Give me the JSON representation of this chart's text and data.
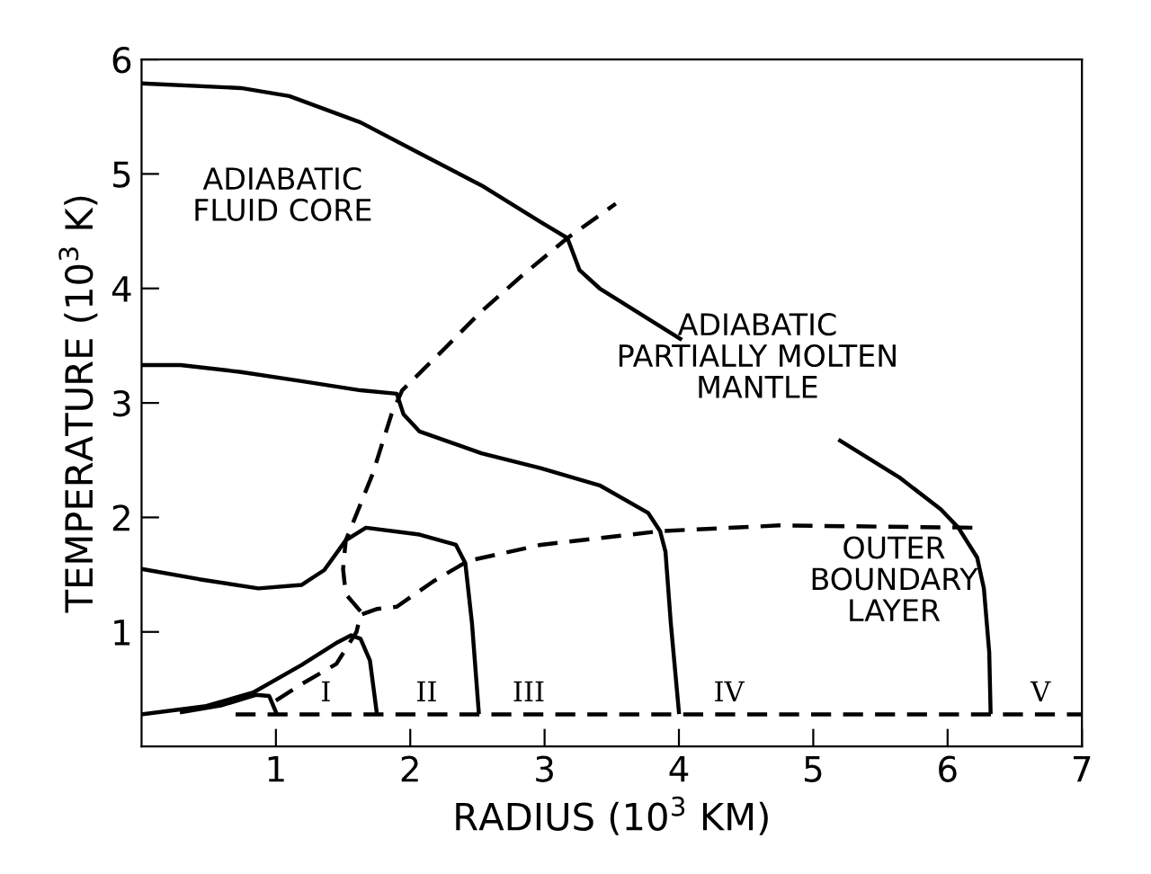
{
  "chart_data": {
    "type": "line",
    "xlabel": "RADIUS (10$^{3}$ KM)",
    "ylabel": "TEMPERATURE (10$^{3}$ K)",
    "xlim": [
      0,
      7
    ],
    "ylim": [
      0,
      6
    ],
    "xticks": [
      1,
      2,
      3,
      4,
      5,
      6,
      7
    ],
    "yticks": [
      1,
      2,
      3,
      4,
      5,
      6
    ],
    "grid": false,
    "legend": false,
    "series": [
      {
        "name": "V",
        "color": "#000000",
        "line_style": "solid",
        "x": [
          0,
          0.74,
          1.1,
          1.63,
          2.07,
          2.53,
          2.97,
          3.17,
          3.26,
          3.41,
          4.01,
          4.05,
          5.15,
          5.2,
          5.64,
          5.95,
          6.08,
          6.22,
          6.27,
          6.31,
          6.32
        ],
        "values": [
          5.79,
          5.75,
          5.68,
          5.45,
          5.18,
          4.9,
          4.58,
          4.44,
          4.16,
          4.0,
          3.56,
          null,
          null,
          2.67,
          2.35,
          2.07,
          1.91,
          1.65,
          1.38,
          0.82,
          0.3
        ]
      },
      {
        "name": "IV",
        "color": "#000000",
        "line_style": "solid",
        "x": [
          0,
          0.29,
          0.74,
          1.19,
          1.63,
          1.9,
          1.95,
          2.07,
          2.53,
          2.97,
          3.41,
          3.77,
          3.86,
          3.9,
          3.94,
          4.0
        ],
        "values": [
          3.33,
          3.33,
          3.27,
          3.19,
          3.11,
          3.08,
          2.9,
          2.75,
          2.56,
          2.43,
          2.28,
          2.04,
          1.88,
          1.7,
          1.07,
          0.3
        ]
      },
      {
        "name": "III",
        "color": "#000000",
        "line_style": "solid",
        "x": [
          0,
          0.43,
          0.87,
          1.19,
          1.36,
          1.52,
          1.67,
          2.07,
          2.34,
          2.41,
          2.46,
          2.51
        ],
        "values": [
          1.55,
          1.46,
          1.38,
          1.41,
          1.54,
          1.8,
          1.91,
          1.85,
          1.76,
          1.6,
          1.07,
          0.3
        ]
      },
      {
        "name": "II",
        "color": "#000000",
        "line_style": "solid",
        "x": [
          0,
          0.47,
          0.83,
          1.19,
          1.46,
          1.56,
          1.63,
          1.7,
          1.75
        ],
        "values": [
          0.28,
          0.35,
          0.47,
          0.71,
          0.91,
          0.97,
          0.94,
          0.75,
          0.3
        ]
      },
      {
        "name": "I",
        "color": "#000000",
        "line_style": "solid",
        "x": [
          0.3,
          0.6,
          0.85,
          0.95,
          1.0
        ],
        "values": [
          0.3,
          0.36,
          0.45,
          0.44,
          0.3
        ]
      },
      {
        "color": "#000000",
        "line_style": "dashed",
        "x": [
          0.7,
          7
        ],
        "values": [
          0.28,
          0.28
        ]
      },
      {
        "color": "#000000",
        "line_style": "dashed",
        "x": [
          1.0,
          1.2,
          1.45,
          1.6,
          1.63,
          1.75,
          1.9,
          2.17,
          2.43,
          2.97,
          3.86,
          4.75,
          6.2
        ],
        "values": [
          0.4,
          0.55,
          0.72,
          1.0,
          1.15,
          1.2,
          1.22,
          1.44,
          1.62,
          1.76,
          1.88,
          1.93,
          1.91
        ]
      },
      {
        "color": "#000000",
        "line_style": "dashed",
        "x": [
          1.63,
          1.52,
          1.5,
          1.52,
          1.59,
          1.72,
          1.86,
          1.94,
          2.26,
          2.53,
          2.83,
          3.17,
          3.53
        ],
        "values": [
          1.18,
          1.33,
          1.55,
          1.8,
          2.0,
          2.38,
          2.9,
          3.11,
          3.48,
          3.8,
          4.11,
          4.44,
          4.74
        ]
      }
    ],
    "annotations": [
      "ADIABATIC\nFLUID CORE",
      "ADIABATIC\nPARTIALLY MOLTEN\nMANTLE",
      "OUTER\nBOUNDARY\nLAYER"
    ]
  }
}
